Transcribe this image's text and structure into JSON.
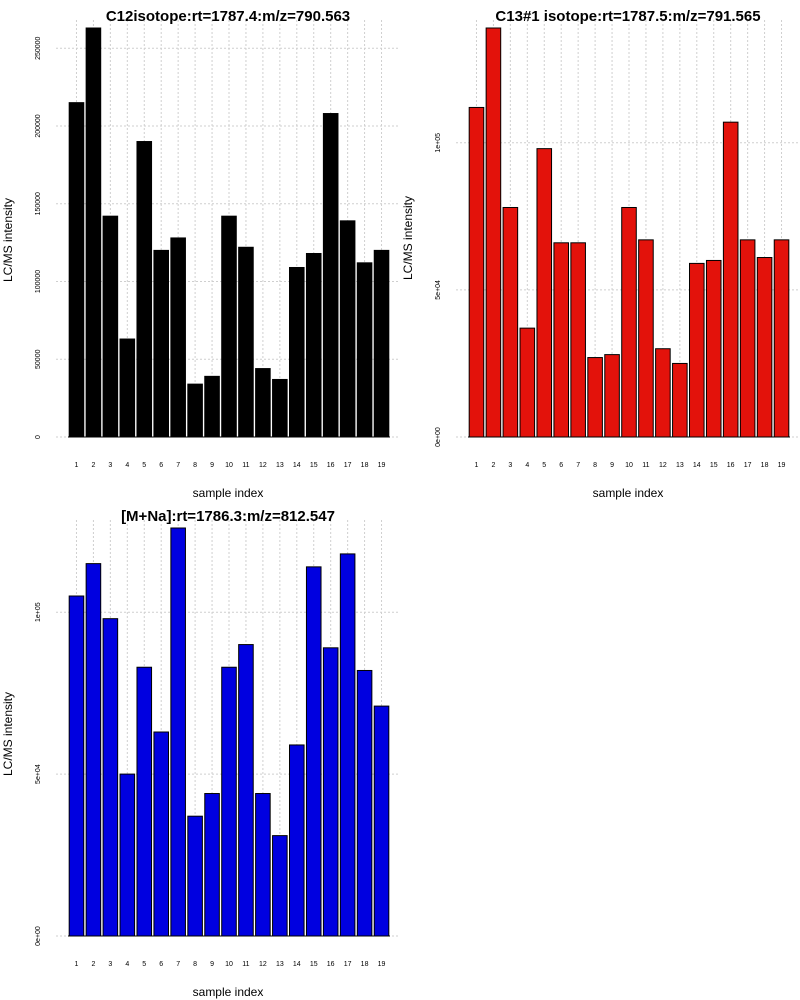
{
  "chart_data": [
    {
      "type": "bar",
      "title": "C12isotope:rt=1787.4:m/z=790.563",
      "xlabel": "sample index",
      "ylabel": "LC/MS intensity",
      "color": "#000000",
      "categories": [
        "1",
        "2",
        "3",
        "4",
        "5",
        "6",
        "7",
        "8",
        "9",
        "10",
        "11",
        "12",
        "13",
        "14",
        "15",
        "16",
        "17",
        "18",
        "19"
      ],
      "values": [
        215000,
        263000,
        142000,
        63000,
        190000,
        120000,
        128000,
        34000,
        39000,
        142000,
        122000,
        44000,
        37000,
        109000,
        118000,
        208000,
        139000,
        112000,
        120000
      ],
      "ylim": [
        0,
        263000
      ],
      "yticks": [
        {
          "value": 0,
          "label": "0"
        },
        {
          "value": 50000,
          "label": "50000"
        },
        {
          "value": 100000,
          "label": "100000"
        },
        {
          "value": 150000,
          "label": "150000"
        },
        {
          "value": 200000,
          "label": "200000"
        },
        {
          "value": 250000,
          "label": "250000"
        }
      ],
      "grid": true
    },
    {
      "type": "bar",
      "title": "C13#1 isotope:rt=1787.5:m/z=791.565",
      "xlabel": "sample index",
      "ylabel": "LC/MS intensity",
      "color": "#e3120b",
      "categories": [
        "1",
        "2",
        "3",
        "4",
        "5",
        "6",
        "7",
        "8",
        "9",
        "10",
        "11",
        "12",
        "13",
        "14",
        "15",
        "16",
        "17",
        "18",
        "19"
      ],
      "values": [
        112000,
        139000,
        78000,
        37000,
        98000,
        66000,
        66000,
        27000,
        28000,
        78000,
        67000,
        30000,
        25000,
        59000,
        60000,
        107000,
        67000,
        61000,
        67000
      ],
      "ylim": [
        0,
        139000
      ],
      "yticks": [
        {
          "value": 0,
          "label": "0e+00"
        },
        {
          "value": 50000,
          "label": "5e+04"
        },
        {
          "value": 100000,
          "label": "1e+05"
        }
      ],
      "grid": true
    },
    {
      "type": "bar",
      "title": "[M+Na]:rt=1786.3:m/z=812.547",
      "xlabel": "sample index",
      "ylabel": "LC/MS intensity",
      "color": "#0000e0",
      "categories": [
        "1",
        "2",
        "3",
        "4",
        "5",
        "6",
        "7",
        "8",
        "9",
        "10",
        "11",
        "12",
        "13",
        "14",
        "15",
        "16",
        "17",
        "18",
        "19"
      ],
      "values": [
        105000,
        115000,
        98000,
        50000,
        83000,
        63000,
        126000,
        37000,
        44000,
        83000,
        90000,
        44000,
        31000,
        59000,
        114000,
        89000,
        118000,
        82000,
        71000
      ],
      "ylim": [
        0,
        126000
      ],
      "yticks": [
        {
          "value": 0,
          "label": "0e+00"
        },
        {
          "value": 50000,
          "label": "5e+04"
        },
        {
          "value": 100000,
          "label": "1e+05"
        }
      ],
      "grid": true
    }
  ]
}
